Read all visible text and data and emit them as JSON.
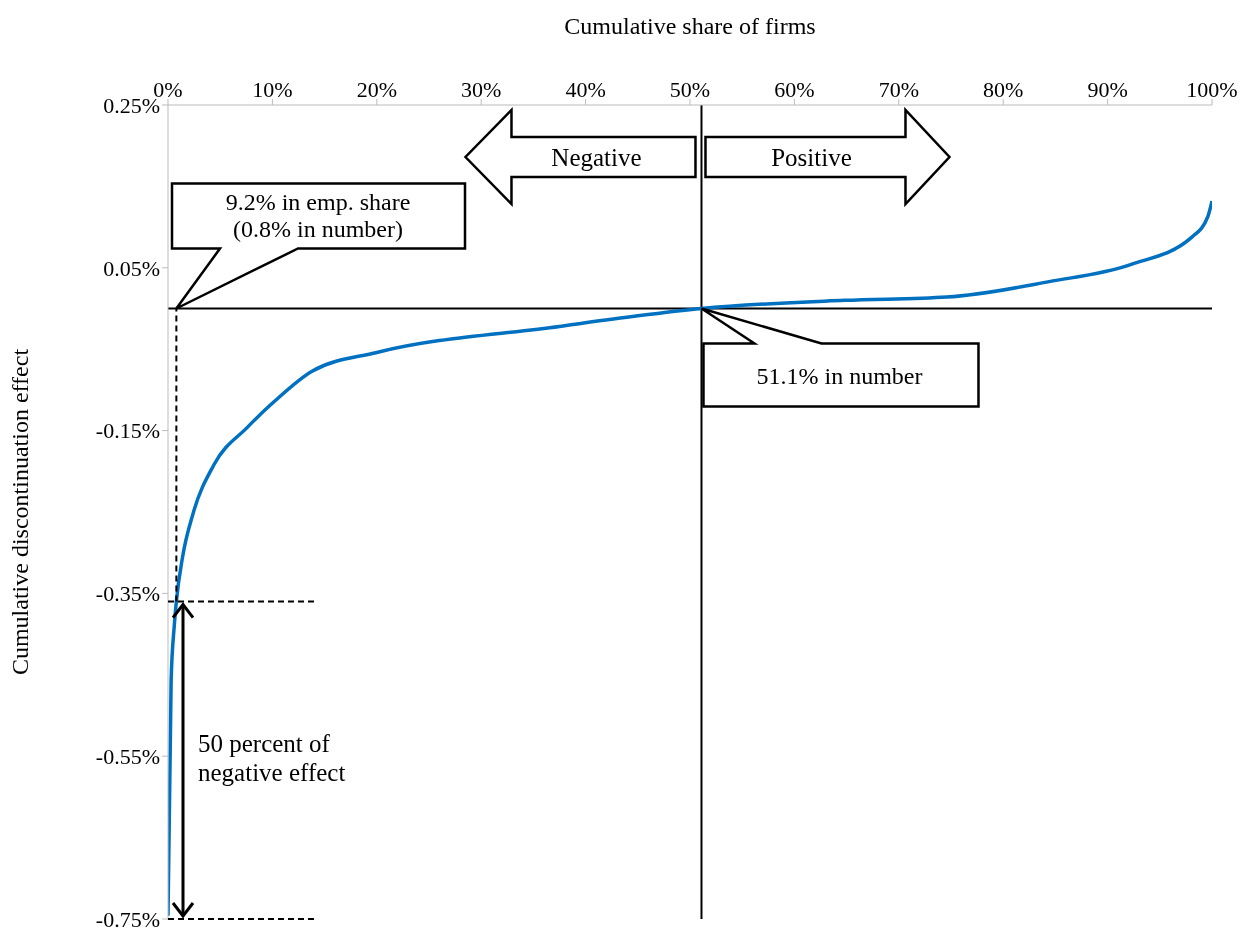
{
  "chart_data": {
    "type": "line",
    "xlabel": "Cumulative share of firms",
    "ylabel": "Cumulative discontinuation effect",
    "xlim": [
      0,
      100
    ],
    "xticks": [
      {
        "value": 0,
        "label": "0%"
      },
      {
        "value": 10,
        "label": "10%"
      },
      {
        "value": 20,
        "label": "20%"
      },
      {
        "value": 30,
        "label": "30%"
      },
      {
        "value": 40,
        "label": "40%"
      },
      {
        "value": 50,
        "label": "50%"
      },
      {
        "value": 60,
        "label": "60%"
      },
      {
        "value": 70,
        "label": "70%"
      },
      {
        "value": 80,
        "label": "80%"
      },
      {
        "value": 90,
        "label": "90%"
      },
      {
        "value": 100,
        "label": "100%"
      }
    ],
    "ylim": [
      -0.75,
      0.25
    ],
    "yticks": [
      {
        "value": 0.25,
        "label": "0.25%"
      },
      {
        "value": 0.05,
        "label": "0.05%"
      },
      {
        "value": -0.15,
        "label": "-0.15%"
      },
      {
        "value": -0.35,
        "label": "-0.35%"
      },
      {
        "value": -0.55,
        "label": "-0.55%"
      },
      {
        "value": -0.75,
        "label": "-0.75%"
      }
    ],
    "marker": "none",
    "series": [
      {
        "color": "#0070c0",
        "x": [
          0,
          0.3,
          0.6,
          0.8,
          1.4,
          2.4,
          4.4,
          7.6,
          10.2,
          13.8,
          20,
          37.5,
          45,
          51.1,
          64.8,
          74.6,
          84.4,
          92.2,
          98.1,
          99.6,
          100
        ],
        "values": [
          -0.746,
          -0.457,
          -0.39,
          -0.36,
          -0.305,
          -0.252,
          -0.192,
          -0.146,
          -0.114,
          -0.077,
          -0.054,
          -0.022,
          -0.009,
          0,
          0.01,
          0.014,
          0.033,
          0.054,
          0.088,
          0.113,
          0.132
        ]
      }
    ],
    "ref_lines": [
      {
        "axis": "y",
        "value": 0,
        "color": "#000000",
        "line_style": "solid"
      },
      {
        "axis": "x",
        "value": 51.1,
        "color": "#000000",
        "line_style": "solid"
      },
      {
        "axis": "x",
        "value": 0.8,
        "color": "#000000",
        "line_style": "dashed"
      },
      {
        "axis": "y",
        "value": -0.36,
        "color": "#000000",
        "line_style": "dashed"
      },
      {
        "axis": "y",
        "value": -0.75,
        "color": "#000000",
        "line_style": "dashed"
      }
    ],
    "annotations": [
      "Negative",
      "Positive",
      "9.2% in emp. share\n(0.8% in number)",
      "51.1% in number",
      "50 percent of\nnegative effect"
    ]
  }
}
